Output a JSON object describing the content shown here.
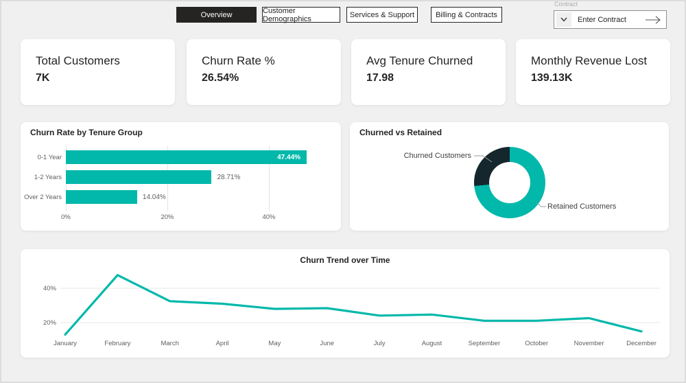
{
  "tabs": [
    {
      "label": "Overview",
      "active": true
    },
    {
      "label": "Customer Demographics",
      "active": false
    },
    {
      "label": "Services & Support",
      "active": false
    },
    {
      "label": "Billing & Contracts",
      "active": false
    }
  ],
  "contract": {
    "label": "Contract",
    "placeholder": "Enter Contract"
  },
  "kpis": [
    {
      "title": "Total Customers",
      "value": "7K"
    },
    {
      "title": "Churn Rate %",
      "value": "26.54%"
    },
    {
      "title": "Avg Tenure Churned",
      "value": "17.98"
    },
    {
      "title": "Monthly Revenue Lost",
      "value": "139.13K"
    }
  ],
  "colors": {
    "accent_teal": "#01B8AA",
    "dark_slice": "#15262D",
    "tab_active_bg": "#252423",
    "axis_text": "#605E5C",
    "background": "#F1F0F0"
  },
  "chart_data": [
    {
      "type": "bar",
      "orientation": "horizontal",
      "title": "Churn Rate by Tenure Group",
      "categories": [
        "0-1 Year",
        "1-2 Years",
        "Over 2 Years"
      ],
      "values": [
        47.44,
        28.71,
        14.04
      ],
      "value_labels": [
        "47.44%",
        "28.71%",
        "14.04%"
      ],
      "x_ticks": [
        0,
        20,
        40
      ],
      "x_tick_labels": [
        "0%",
        "20%",
        "40%"
      ],
      "xlim": [
        0,
        50
      ],
      "bar_color": "#01B8AA",
      "grid": true,
      "legend": "none"
    },
    {
      "type": "pie",
      "subtype": "donut",
      "title": "Churned vs Retained",
      "slices": [
        {
          "label": "Retained Customers",
          "value": 73.46,
          "color": "#01B8AA"
        },
        {
          "label": "Churned Customers",
          "value": 26.54,
          "color": "#15262D"
        }
      ],
      "legend": "callout-labels"
    },
    {
      "type": "line",
      "title": "Churn Trend over Time",
      "x": [
        "January",
        "February",
        "March",
        "April",
        "May",
        "June",
        "July",
        "August",
        "September",
        "October",
        "November",
        "December"
      ],
      "values": [
        13.0,
        47.7,
        32.5,
        31.0,
        28.0,
        28.4,
        24.1,
        24.7,
        21.1,
        21.1,
        22.6,
        14.9
      ],
      "y_ticks": [
        20,
        40
      ],
      "y_tick_labels": [
        "20%",
        "40%"
      ],
      "ylim": [
        10,
        52
      ],
      "line_color": "#01B8AA",
      "grid": true,
      "legend": "none"
    }
  ]
}
